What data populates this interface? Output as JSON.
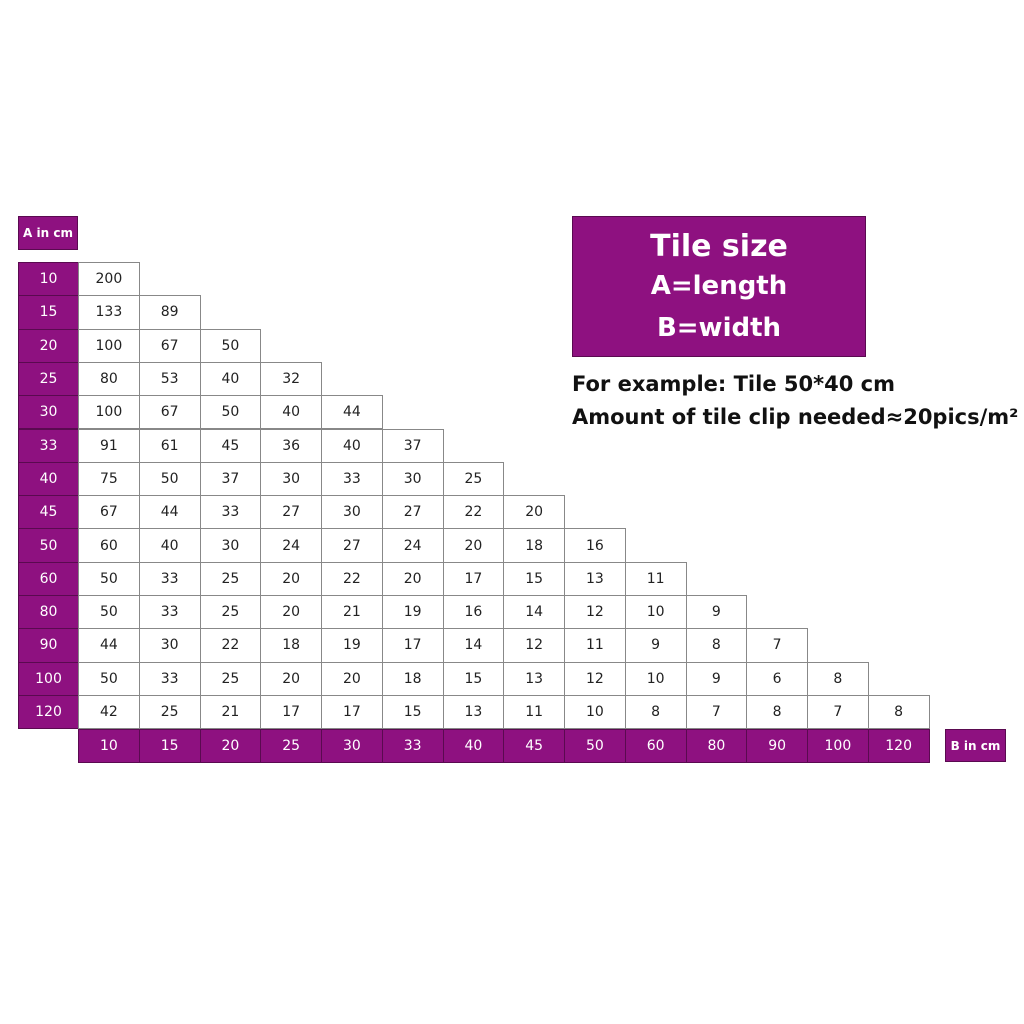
{
  "title_box": {
    "line1": "Tile size",
    "line2": "A=length",
    "line3": "B=width"
  },
  "example": {
    "line1": "For example: Tile 50*40 cm",
    "line2": "Amount of tile clip needed≈20pics/m²"
  },
  "colors": {
    "header_bg": "#8e1180",
    "header_text": "#ffffff",
    "cell_border": "#888888"
  },
  "chart_data": {
    "type": "table",
    "row_axis_label": "A in cm",
    "col_axis_label": "B in cm",
    "row_headers": [
      "10",
      "15",
      "20",
      "25",
      "30",
      "33",
      "40",
      "45",
      "50",
      "60",
      "80",
      "90",
      "100",
      "120"
    ],
    "col_headers": [
      "10",
      "15",
      "20",
      "25",
      "30",
      "33",
      "40",
      "45",
      "50",
      "60",
      "80",
      "90",
      "100",
      "120"
    ],
    "rows": [
      [
        "200"
      ],
      [
        "133",
        "89"
      ],
      [
        "100",
        "67",
        "50"
      ],
      [
        "80",
        "53",
        "40",
        "32"
      ],
      [
        "100",
        "67",
        "50",
        "40",
        "44"
      ],
      [
        "91",
        "61",
        "45",
        "36",
        "40",
        "37"
      ],
      [
        "75",
        "50",
        "37",
        "30",
        "33",
        "30",
        "25"
      ],
      [
        "67",
        "44",
        "33",
        "27",
        "30",
        "27",
        "22",
        "20"
      ],
      [
        "60",
        "40",
        "30",
        "24",
        "27",
        "24",
        "20",
        "18",
        "16"
      ],
      [
        "50",
        "33",
        "25",
        "20",
        "22",
        "20",
        "17",
        "15",
        "13",
        "11"
      ],
      [
        "50",
        "33",
        "25",
        "20",
        "21",
        "19",
        "16",
        "14",
        "12",
        "10",
        "9"
      ],
      [
        "44",
        "30",
        "22",
        "18",
        "19",
        "17",
        "14",
        "12",
        "11",
        "9",
        "8",
        "7"
      ],
      [
        "50",
        "33",
        "25",
        "20",
        "20",
        "18",
        "15",
        "13",
        "12",
        "10",
        "9",
        "6",
        "8"
      ],
      [
        "42",
        "25",
        "21",
        "17",
        "17",
        "15",
        "13",
        "11",
        "10",
        "8",
        "7",
        "8",
        "7",
        "8"
      ]
    ]
  }
}
